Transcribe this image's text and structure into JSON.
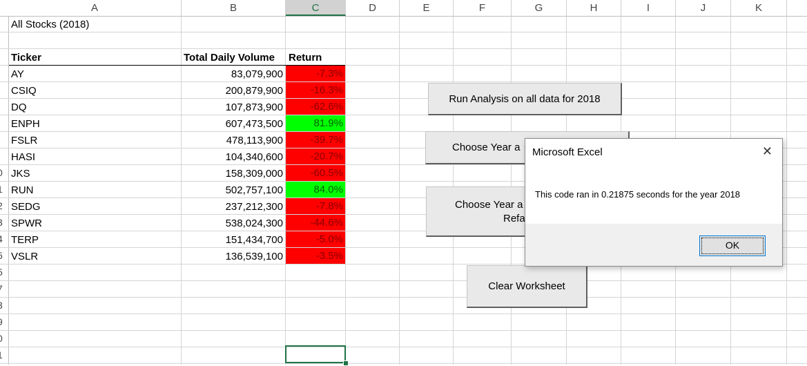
{
  "columns": [
    "A",
    "B",
    "C",
    "D",
    "E",
    "F",
    "G",
    "H",
    "I",
    "J",
    "K"
  ],
  "row_numbers": [
    "0",
    "1",
    "2",
    "3",
    "4",
    "5",
    "5",
    "7",
    "3",
    "9",
    "0",
    "1"
  ],
  "sheet_title": "All Stocks (2018)",
  "table": {
    "headers": {
      "ticker": "Ticker",
      "volume": "Total Daily Volume",
      "return": "Return"
    },
    "rows": [
      {
        "ticker": "AY",
        "volume": "83,079,900",
        "return": "-7.3%",
        "positive": false
      },
      {
        "ticker": "CSIQ",
        "volume": "200,879,900",
        "return": "-16.3%",
        "positive": false
      },
      {
        "ticker": "DQ",
        "volume": "107,873,900",
        "return": "-62.6%",
        "positive": false
      },
      {
        "ticker": "ENPH",
        "volume": "607,473,500",
        "return": "81.9%",
        "positive": true
      },
      {
        "ticker": "FSLR",
        "volume": "478,113,900",
        "return": "-39.7%",
        "positive": false
      },
      {
        "ticker": "HASI",
        "volume": "104,340,600",
        "return": "-20.7%",
        "positive": false
      },
      {
        "ticker": "JKS",
        "volume": "158,309,000",
        "return": "-60.5%",
        "positive": false
      },
      {
        "ticker": "RUN",
        "volume": "502,757,100",
        "return": "84.0%",
        "positive": true
      },
      {
        "ticker": "SEDG",
        "volume": "237,212,300",
        "return": "-7.8%",
        "positive": false
      },
      {
        "ticker": "SPWR",
        "volume": "538,024,300",
        "return": "-44.6%",
        "positive": false
      },
      {
        "ticker": "TERP",
        "volume": "151,434,700",
        "return": "-5.0%",
        "positive": false
      },
      {
        "ticker": "VSLR",
        "volume": "136,539,100",
        "return": "-3.5%",
        "positive": false
      }
    ]
  },
  "buttons": {
    "run_all": "Run Analysis on all data for 2018",
    "choose_year": "Choose Year a",
    "choose_year_refactored_line1": "Choose Year a",
    "choose_year_refactored_line2": "Refa",
    "clear": "Clear Worksheet"
  },
  "dialog": {
    "title": "Microsoft Excel",
    "message": "This code ran in 0.21875 seconds for the year 2018",
    "ok_label": "OK",
    "close_icon": "close-icon"
  },
  "colors": {
    "negative_fill": "#ff0000",
    "positive_fill": "#00ff00",
    "selection_accent": "#217346"
  }
}
